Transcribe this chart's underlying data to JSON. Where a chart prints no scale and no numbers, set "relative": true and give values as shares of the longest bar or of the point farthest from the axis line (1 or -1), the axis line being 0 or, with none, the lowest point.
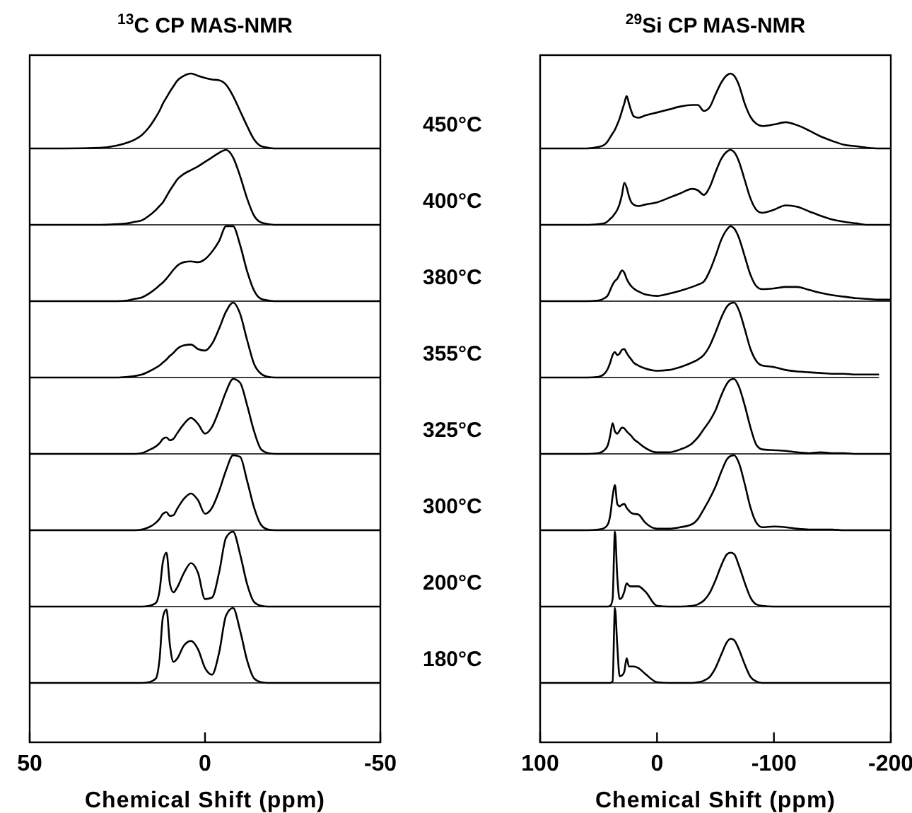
{
  "chart_data": [
    {
      "type": "line",
      "title": "$^{13}$C CP MAS-NMR",
      "relative": true,
      "xlim": [
        50,
        -50
      ],
      "tick_labels": false,
      "x": [
        50,
        40,
        30,
        25,
        22,
        20,
        18,
        16,
        14,
        13,
        12,
        11,
        10,
        9,
        8,
        6,
        4,
        2,
        0,
        -2,
        -4,
        -6,
        -8,
        -10,
        -12,
        -14,
        -16,
        -18,
        -20,
        -25,
        -30,
        -40,
        -50
      ],
      "series": [
        {
          "name": "450°C",
          "color": "#000000",
          "values": [
            0,
            0,
            0.01,
            0.04,
            0.08,
            0.12,
            0.18,
            0.28,
            0.42,
            0.5,
            0.6,
            0.68,
            0.76,
            0.83,
            0.9,
            0.97,
            1,
            0.97,
            0.94,
            0.92,
            0.91,
            0.85,
            0.7,
            0.5,
            0.3,
            0.12,
            0.03,
            0.01,
            0,
            0,
            0,
            0,
            0
          ]
        }
      ]
    },
    {
      "type": "line",
      "relative": true,
      "xlim": [
        50,
        -50
      ],
      "tick_labels": false,
      "x": [
        50,
        40,
        30,
        25,
        22,
        20,
        18,
        16,
        14,
        13,
        12,
        11,
        10,
        9,
        8,
        6,
        4,
        2,
        0,
        -2,
        -4,
        -6,
        -8,
        -10,
        -12,
        -14,
        -16,
        -18,
        -20,
        -25,
        -30,
        -40,
        -50
      ],
      "series": [
        {
          "name": "400°C",
          "color": "#000000",
          "values": [
            0,
            0,
            0,
            0.01,
            0.02,
            0.04,
            0.06,
            0.12,
            0.2,
            0.25,
            0.3,
            0.38,
            0.46,
            0.53,
            0.6,
            0.68,
            0.73,
            0.78,
            0.84,
            0.9,
            0.96,
            1,
            0.9,
            0.65,
            0.35,
            0.12,
            0.03,
            0.01,
            0,
            0,
            0,
            0,
            0
          ]
        }
      ]
    },
    {
      "type": "line",
      "relative": true,
      "xlim": [
        50,
        -50
      ],
      "tick_labels": false,
      "x": [
        50,
        40,
        30,
        25,
        22,
        20,
        18,
        16,
        14,
        13,
        12,
        11,
        10,
        9,
        8,
        6,
        4,
        2,
        0,
        -2,
        -4,
        -6,
        -8,
        -10,
        -12,
        -14,
        -16,
        -18,
        -20,
        -25,
        -30,
        -40,
        -50
      ],
      "series": [
        {
          "name": "380°C",
          "color": "#000000",
          "values": [
            0,
            0,
            0,
            0,
            0.01,
            0.03,
            0.05,
            0.1,
            0.17,
            0.21,
            0.25,
            0.3,
            0.36,
            0.42,
            0.47,
            0.52,
            0.53,
            0.52,
            0.56,
            0.66,
            0.8,
            1,
            1,
            0.75,
            0.4,
            0.14,
            0.03,
            0.01,
            0,
            0,
            0,
            0,
            0
          ]
        }
      ]
    },
    {
      "type": "line",
      "relative": true,
      "xlim": [
        50,
        -50
      ],
      "tick_labels": false,
      "x": [
        50,
        40,
        30,
        25,
        22,
        20,
        18,
        16,
        14,
        13,
        12,
        11,
        10,
        9,
        8,
        6,
        4,
        2,
        0,
        -2,
        -4,
        -6,
        -8,
        -10,
        -12,
        -14,
        -16,
        -18,
        -20,
        -25,
        -30,
        -40,
        -50
      ],
      "series": [
        {
          "name": "355°C",
          "color": "#000000",
          "values": [
            0,
            0,
            0,
            0,
            0.01,
            0.02,
            0.04,
            0.08,
            0.13,
            0.16,
            0.2,
            0.24,
            0.29,
            0.33,
            0.38,
            0.43,
            0.44,
            0.38,
            0.36,
            0.45,
            0.65,
            0.88,
            1,
            0.85,
            0.5,
            0.18,
            0.05,
            0.01,
            0,
            0,
            0,
            0,
            0
          ]
        }
      ]
    },
    {
      "type": "line",
      "relative": true,
      "xlim": [
        50,
        -50
      ],
      "tick_labels": false,
      "x": [
        50,
        40,
        30,
        25,
        22,
        20,
        18,
        16,
        14,
        13,
        12,
        11,
        10,
        9,
        8,
        6,
        4,
        2,
        0,
        -2,
        -4,
        -6,
        -8,
        -10,
        -12,
        -14,
        -16,
        -18,
        -20,
        -25,
        -30,
        -40,
        -50
      ],
      "series": [
        {
          "name": "325°C",
          "color": "#000000",
          "values": [
            0,
            0,
            0,
            0,
            0,
            0,
            0.01,
            0.05,
            0.1,
            0.14,
            0.2,
            0.22,
            0.18,
            0.2,
            0.27,
            0.4,
            0.48,
            0.4,
            0.27,
            0.36,
            0.58,
            0.83,
            1,
            0.95,
            0.65,
            0.3,
            0.06,
            0.01,
            0,
            0,
            0,
            0,
            0
          ]
        }
      ]
    },
    {
      "type": "line",
      "relative": true,
      "xlim": [
        50,
        -50
      ],
      "tick_labels": false,
      "x": [
        50,
        40,
        30,
        25,
        22,
        20,
        18,
        16,
        14,
        13,
        12,
        11,
        10,
        9,
        8,
        6,
        4,
        2,
        0,
        -2,
        -4,
        -6,
        -8,
        -10,
        -12,
        -14,
        -16,
        -18,
        -20,
        -25,
        -30,
        -40,
        -50
      ],
      "series": [
        {
          "name": "300°C",
          "color": "#000000",
          "values": [
            0,
            0,
            0,
            0,
            0,
            0,
            0.01,
            0.04,
            0.1,
            0.15,
            0.22,
            0.24,
            0.19,
            0.2,
            0.28,
            0.42,
            0.49,
            0.4,
            0.22,
            0.3,
            0.52,
            0.8,
            1,
            0.98,
            0.66,
            0.3,
            0.07,
            0.01,
            0,
            0,
            0,
            0,
            0
          ]
        }
      ]
    },
    {
      "type": "line",
      "relative": true,
      "xlim": [
        50,
        -50
      ],
      "tick_labels": false,
      "x": [
        50,
        40,
        30,
        25,
        22,
        20,
        18,
        16,
        14,
        13,
        12,
        11,
        10,
        9,
        8,
        6,
        4,
        2,
        0,
        -2,
        -4,
        -6,
        -8,
        -10,
        -12,
        -14,
        -16,
        -18,
        -20,
        -25,
        -30,
        -40,
        -50
      ],
      "series": [
        {
          "name": "200°C",
          "color": "#000000",
          "values": [
            0,
            0,
            0,
            0,
            0,
            0,
            0,
            0.01,
            0.05,
            0.2,
            0.6,
            0.72,
            0.3,
            0.19,
            0.25,
            0.45,
            0.58,
            0.45,
            0.1,
            0.12,
            0.45,
            0.92,
            1,
            0.7,
            0.3,
            0.06,
            0.01,
            0,
            0,
            0,
            0,
            0,
            0
          ]
        }
      ]
    },
    {
      "type": "line",
      "xlabel": "Chemical Shift (ppm)",
      "relative": true,
      "xlim": [
        50,
        -50
      ],
      "xticks": [
        50,
        0,
        -50
      ],
      "tick_labels": "x",
      "x": [
        50,
        40,
        30,
        25,
        22,
        20,
        18,
        16,
        14,
        13,
        12,
        11,
        10,
        9,
        8,
        6,
        4,
        2,
        0,
        -2,
        -4,
        -6,
        -8,
        -10,
        -12,
        -14,
        -16,
        -18,
        -20,
        -25,
        -30,
        -40,
        -50
      ],
      "series": [
        {
          "name": "180°C",
          "color": "#000000",
          "values": [
            0,
            0,
            0,
            0,
            0,
            0,
            0,
            0.01,
            0.06,
            0.3,
            0.88,
            0.98,
            0.5,
            0.28,
            0.32,
            0.5,
            0.56,
            0.45,
            0.2,
            0.11,
            0.4,
            0.9,
            1,
            0.7,
            0.3,
            0.06,
            0.01,
            0,
            0,
            0,
            0,
            0,
            0
          ]
        }
      ]
    },
    {
      "type": "line",
      "title": "$^{29}$Si CP MAS-NMR",
      "relative": true,
      "xlim": [
        100,
        -200
      ],
      "tick_labels": false,
      "x": [
        100,
        80,
        60,
        50,
        45,
        42,
        40,
        38,
        36,
        34,
        32,
        30,
        28,
        26,
        24,
        22,
        20,
        16,
        10,
        0,
        -10,
        -20,
        -30,
        -35,
        -40,
        -45,
        -50,
        -55,
        -60,
        -63,
        -66,
        -70,
        -75,
        -80,
        -85,
        -90,
        -100,
        -110,
        -120,
        -130,
        -140,
        -150,
        -160,
        -170,
        -180,
        -190,
        -200
      ],
      "series": [
        {
          "color": "#000000",
          "values": [
            0,
            0,
            0,
            0.02,
            0.05,
            0.1,
            0.15,
            0.2,
            0.25,
            0.32,
            0.4,
            0.5,
            0.6,
            0.7,
            0.6,
            0.5,
            0.43,
            0.41,
            0.44,
            0.48,
            0.52,
            0.56,
            0.58,
            0.58,
            0.5,
            0.55,
            0.72,
            0.88,
            0.98,
            1,
            0.97,
            0.85,
            0.6,
            0.42,
            0.33,
            0.3,
            0.32,
            0.35,
            0.31,
            0.24,
            0.16,
            0.1,
            0.05,
            0.03,
            0.01,
            0,
            0
          ]
        }
      ]
    },
    {
      "type": "line",
      "relative": true,
      "xlim": [
        100,
        -200
      ],
      "tick_labels": false,
      "x": [
        100,
        80,
        60,
        50,
        45,
        42,
        40,
        38,
        36,
        34,
        32,
        30,
        28,
        26,
        24,
        22,
        20,
        16,
        10,
        0,
        -10,
        -20,
        -30,
        -35,
        -40,
        -45,
        -50,
        -55,
        -60,
        -63,
        -66,
        -70,
        -75,
        -80,
        -85,
        -90,
        -100,
        -110,
        -120,
        -130,
        -140,
        -150,
        -160,
        -170,
        -180,
        -190,
        -200
      ],
      "series": [
        {
          "color": "#000000",
          "values": [
            0,
            0,
            0,
            0.01,
            0.02,
            0.05,
            0.08,
            0.11,
            0.15,
            0.2,
            0.28,
            0.4,
            0.56,
            0.5,
            0.38,
            0.3,
            0.27,
            0.25,
            0.27,
            0.3,
            0.36,
            0.42,
            0.48,
            0.46,
            0.4,
            0.5,
            0.7,
            0.88,
            0.98,
            1,
            0.97,
            0.85,
            0.6,
            0.35,
            0.2,
            0.16,
            0.2,
            0.26,
            0.24,
            0.18,
            0.12,
            0.07,
            0.04,
            0.02,
            0,
            0,
            0
          ]
        }
      ]
    },
    {
      "type": "line",
      "relative": true,
      "xlim": [
        100,
        -200
      ],
      "tick_labels": false,
      "x": [
        100,
        80,
        60,
        50,
        45,
        42,
        40,
        38,
        36,
        34,
        32,
        30,
        28,
        26,
        24,
        22,
        20,
        16,
        10,
        0,
        -10,
        -20,
        -30,
        -35,
        -40,
        -45,
        -50,
        -55,
        -60,
        -63,
        -66,
        -70,
        -75,
        -80,
        -85,
        -90,
        -100,
        -110,
        -120,
        -130,
        -140,
        -150,
        -160,
        -170,
        -180,
        -190,
        -200
      ],
      "series": [
        {
          "color": "#000000",
          "values": [
            0,
            0,
            0,
            0.01,
            0.04,
            0.08,
            0.15,
            0.22,
            0.27,
            0.3,
            0.36,
            0.41,
            0.38,
            0.3,
            0.24,
            0.2,
            0.17,
            0.13,
            0.09,
            0.07,
            0.1,
            0.14,
            0.19,
            0.22,
            0.26,
            0.4,
            0.6,
            0.82,
            0.96,
            1,
            0.97,
            0.85,
            0.6,
            0.35,
            0.2,
            0.16,
            0.17,
            0.19,
            0.19,
            0.15,
            0.11,
            0.08,
            0.06,
            0.04,
            0.03,
            0.02,
            0.02
          ]
        }
      ]
    },
    {
      "type": "line",
      "relative": true,
      "xlim": [
        100,
        -200
      ],
      "tick_labels": false,
      "x": [
        100,
        80,
        60,
        50,
        45,
        42,
        40,
        38,
        36,
        34,
        32,
        30,
        28,
        26,
        24,
        22,
        20,
        16,
        10,
        0,
        -10,
        -20,
        -30,
        -35,
        -40,
        -45,
        -50,
        -55,
        -60,
        -63,
        -66,
        -70,
        -75,
        -80,
        -85,
        -90,
        -100,
        -110,
        -120,
        -130,
        -140,
        -150,
        -160,
        -170,
        -180,
        -190
      ],
      "series": [
        {
          "color": "#000000",
          "values": [
            0,
            0,
            0,
            0.01,
            0.05,
            0.12,
            0.2,
            0.3,
            0.34,
            0.3,
            0.32,
            0.37,
            0.38,
            0.33,
            0.28,
            0.24,
            0.2,
            0.16,
            0.12,
            0.09,
            0.1,
            0.14,
            0.2,
            0.24,
            0.3,
            0.42,
            0.6,
            0.8,
            0.95,
            0.99,
            1,
            0.9,
            0.65,
            0.38,
            0.22,
            0.16,
            0.14,
            0.1,
            0.08,
            0.07,
            0.06,
            0.05,
            0.05,
            0.04,
            0.04,
            0.04
          ]
        }
      ]
    },
    {
      "type": "line",
      "relative": true,
      "xlim": [
        100,
        -200
      ],
      "tick_labels": false,
      "x": [
        100,
        80,
        60,
        50,
        45,
        42,
        40,
        38,
        36,
        34,
        32,
        30,
        28,
        26,
        24,
        22,
        20,
        16,
        10,
        0,
        -10,
        -20,
        -30,
        -35,
        -40,
        -45,
        -50,
        -55,
        -60,
        -63,
        -66,
        -70,
        -75,
        -80,
        -85,
        -90,
        -100,
        -110,
        -120,
        -130,
        -140,
        -150,
        -160,
        -170,
        -180,
        -190,
        -200
      ],
      "series": [
        {
          "color": "#000000",
          "values": [
            0,
            0,
            0,
            0.01,
            0.05,
            0.12,
            0.25,
            0.41,
            0.3,
            0.27,
            0.31,
            0.35,
            0.34,
            0.3,
            0.27,
            0.24,
            0.2,
            0.15,
            0.08,
            0.02,
            0.02,
            0.06,
            0.14,
            0.22,
            0.33,
            0.44,
            0.58,
            0.78,
            0.94,
            0.99,
            1,
            0.9,
            0.65,
            0.35,
            0.12,
            0.06,
            0.05,
            0.04,
            0.02,
            0.01,
            0.02,
            0.01,
            0.01,
            0,
            0,
            0,
            0
          ]
        }
      ]
    },
    {
      "type": "line",
      "relative": true,
      "xlim": [
        100,
        -200
      ],
      "tick_labels": false,
      "x": [
        100,
        80,
        60,
        50,
        45,
        42,
        40,
        38,
        36,
        34,
        32,
        30,
        28,
        26,
        24,
        22,
        20,
        16,
        10,
        0,
        -10,
        -20,
        -30,
        -35,
        -40,
        -45,
        -50,
        -55,
        -60,
        -63,
        -66,
        -70,
        -75,
        -80,
        -85,
        -90,
        -100,
        -110,
        -120,
        -130,
        -140,
        -150,
        -160,
        -170,
        -180,
        -190,
        -200
      ],
      "series": [
        {
          "color": "#000000",
          "values": [
            0,
            0,
            0,
            0.01,
            0.03,
            0.08,
            0.2,
            0.45,
            0.6,
            0.35,
            0.32,
            0.34,
            0.35,
            0.3,
            0.26,
            0.23,
            0.22,
            0.21,
            0.1,
            0.02,
            0.02,
            0.04,
            0.08,
            0.15,
            0.28,
            0.42,
            0.58,
            0.78,
            0.95,
            0.99,
            1,
            0.9,
            0.62,
            0.3,
            0.1,
            0.04,
            0.05,
            0.04,
            0.02,
            0.01,
            0.01,
            0.01,
            0,
            0,
            0,
            0,
            0
          ]
        }
      ]
    },
    {
      "type": "line",
      "relative": true,
      "xlim": [
        100,
        -200
      ],
      "tick_labels": false,
      "x": [
        100,
        80,
        60,
        50,
        45,
        42,
        40,
        38,
        36,
        34,
        32,
        30,
        28,
        26,
        24,
        22,
        20,
        16,
        10,
        0,
        -10,
        -20,
        -30,
        -35,
        -40,
        -45,
        -50,
        -55,
        -60,
        -63,
        -66,
        -70,
        -75,
        -80,
        -85,
        -90,
        -100,
        -110,
        -120,
        -130,
        -140,
        -150,
        -160,
        -170,
        -180,
        -190,
        -200
      ],
      "series": [
        {
          "color": "#000000",
          "values": [
            0,
            0,
            0,
            0,
            0,
            0,
            0.01,
            0.1,
            1,
            0.4,
            0.1,
            0.12,
            0.2,
            0.31,
            0.28,
            0.27,
            0.27,
            0.27,
            0.2,
            0.01,
            0,
            0,
            0.01,
            0.03,
            0.08,
            0.18,
            0.35,
            0.55,
            0.7,
            0.72,
            0.7,
            0.55,
            0.32,
            0.12,
            0.03,
            0.01,
            0,
            0,
            0,
            0,
            0,
            0,
            0,
            0,
            0,
            0,
            0
          ]
        }
      ]
    },
    {
      "type": "line",
      "xlabel": "Chemical Shift (ppm)",
      "relative": true,
      "xlim": [
        100,
        -200
      ],
      "xticks": [
        100,
        0,
        -100,
        -200
      ],
      "tick_labels": "x",
      "x": [
        100,
        80,
        60,
        50,
        45,
        42,
        40,
        38,
        36,
        34,
        32,
        30,
        28,
        26,
        24,
        22,
        20,
        16,
        10,
        0,
        -10,
        -20,
        -30,
        -35,
        -40,
        -45,
        -50,
        -55,
        -60,
        -63,
        -66,
        -70,
        -75,
        -80,
        -85,
        -90,
        -100,
        -110,
        -120,
        -130,
        -140,
        -150,
        -160,
        -170,
        -180,
        -190,
        -200
      ],
      "series": [
        {
          "color": "#000000",
          "values": [
            0,
            0,
            0,
            0,
            0,
            0,
            0,
            0.02,
            1,
            0.5,
            0.09,
            0.1,
            0.15,
            0.33,
            0.22,
            0.22,
            0.22,
            0.2,
            0.12,
            0.01,
            0,
            0,
            0,
            0.01,
            0.03,
            0.08,
            0.2,
            0.38,
            0.55,
            0.59,
            0.57,
            0.45,
            0.25,
            0.08,
            0.02,
            0,
            0,
            0,
            0,
            0,
            0,
            0,
            0,
            0,
            0,
            0,
            0
          ]
        }
      ]
    }
  ]
}
